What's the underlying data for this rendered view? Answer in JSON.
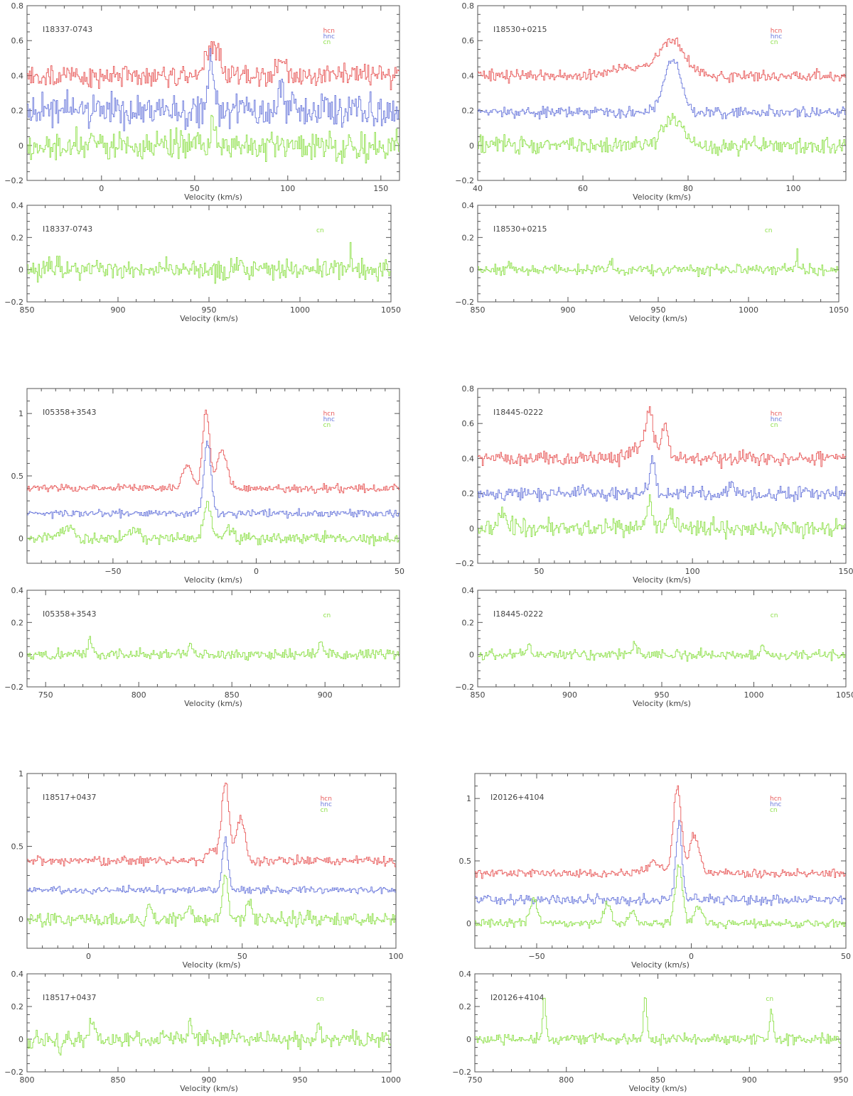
{
  "figure": {
    "colors": {
      "hcn": "#e85a5a",
      "hnc": "#6a78dc",
      "cn": "#8ee04a",
      "axis": "#555555",
      "text": "#444444"
    },
    "xlabel": "Velocity (km/s)"
  },
  "chart_data": [
    {
      "id": "I18337-0743-main",
      "type": "line",
      "source": "I18337-0743",
      "xlabel": "Velocity (km/s)",
      "ylabel": "",
      "xlim": [
        -40,
        160
      ],
      "ylim": [
        -0.2,
        0.8
      ],
      "xticks": [
        0,
        50,
        100,
        150
      ],
      "yticks": [
        -0.2,
        0,
        0.2,
        0.4,
        0.6,
        0.8
      ],
      "legend": [
        "hcn",
        "hnc",
        "cn"
      ],
      "series": [
        {
          "name": "hcn",
          "baseline": 0.4,
          "noise": 0.04,
          "features": [
            [
              57,
              0.1,
              3
            ],
            [
              62,
              0.12,
              2.5
            ],
            [
              97,
              0.1,
              2
            ]
          ]
        },
        {
          "name": "hnc",
          "baseline": 0.2,
          "noise": 0.06,
          "features": [
            [
              59,
              0.28,
              1.5
            ],
            [
              97,
              0.1,
              1.5
            ]
          ]
        },
        {
          "name": "cn",
          "baseline": 0.0,
          "noise": 0.05,
          "features": [
            [
              60,
              0.15,
              1.5
            ]
          ]
        }
      ]
    },
    {
      "id": "I18337-0743-cn",
      "type": "line",
      "source": "I18337-0743",
      "xlabel": "Velocity (km/s)",
      "ylabel": "",
      "xlim": [
        850,
        1050
      ],
      "ylim": [
        -0.2,
        0.4
      ],
      "xticks": [
        850,
        900,
        950,
        1000,
        1050
      ],
      "yticks": [
        -0.2,
        0,
        0.2,
        0.4
      ],
      "legend": [
        "cn"
      ],
      "series": [
        {
          "name": "cn",
          "baseline": 0.0,
          "noise": 0.04,
          "features": [
            [
              1028,
              0.12,
              0.6
            ]
          ]
        }
      ]
    },
    {
      "id": "I18530+0215-main",
      "type": "line",
      "source": "I18530+0215",
      "xlabel": "Velocity (km/s)",
      "ylabel": "",
      "xlim": [
        40,
        110
      ],
      "ylim": [
        -0.2,
        0.8
      ],
      "xticks": [
        40,
        60,
        80,
        100
      ],
      "yticks": [
        -0.2,
        0,
        0.2,
        0.4,
        0.6,
        0.8
      ],
      "legend": [
        "hcn",
        "hnc",
        "cn"
      ],
      "series": [
        {
          "name": "hcn",
          "baseline": 0.4,
          "noise": 0.02,
          "features": [
            [
              77,
              0.2,
              2.2
            ],
            [
              70,
              0.04,
              4
            ]
          ]
        },
        {
          "name": "hnc",
          "baseline": 0.19,
          "noise": 0.02,
          "features": [
            [
              77,
              0.3,
              1.6
            ]
          ]
        },
        {
          "name": "cn",
          "baseline": 0.0,
          "noise": 0.03,
          "features": [
            [
              77,
              0.15,
              1.8
            ]
          ]
        }
      ]
    },
    {
      "id": "I18530+0215-cn",
      "type": "line",
      "source": "I18530+0215",
      "xlabel": "Velocity (km/s)",
      "ylabel": "",
      "xlim": [
        850,
        1050
      ],
      "ylim": [
        -0.2,
        0.4
      ],
      "xticks": [
        850,
        900,
        950,
        1000,
        1050
      ],
      "yticks": [
        -0.2,
        0,
        0.2,
        0.4
      ],
      "legend": [
        "cn"
      ],
      "series": [
        {
          "name": "cn",
          "baseline": 0.0,
          "noise": 0.02,
          "features": [
            [
              868,
              0.05,
              1
            ],
            [
              924,
              0.05,
              1
            ],
            [
              1027,
              0.12,
              0.5
            ]
          ]
        }
      ]
    },
    {
      "id": "I05358+3543-main",
      "type": "line",
      "source": "I05358+3543",
      "xlabel": "Velocity (km/s)",
      "ylabel": "",
      "xlim": [
        -80,
        50
      ],
      "ylim": [
        -0.2,
        1.2
      ],
      "xticks": [
        -50,
        0,
        50
      ],
      "yticks": [
        0,
        0.5,
        1
      ],
      "legend": [
        "hcn",
        "hnc",
        "cn"
      ],
      "series": [
        {
          "name": "hcn",
          "baseline": 0.4,
          "noise": 0.02,
          "features": [
            [
              -17.5,
              0.62,
              1.2
            ],
            [
              -12,
              0.3,
              1.8
            ],
            [
              -24,
              0.2,
              1.5
            ]
          ]
        },
        {
          "name": "hnc",
          "baseline": 0.2,
          "noise": 0.02,
          "features": [
            [
              -17,
              0.58,
              1.2
            ]
          ]
        },
        {
          "name": "cn",
          "baseline": 0.0,
          "noise": 0.03,
          "features": [
            [
              -17,
              0.3,
              1.2
            ],
            [
              -66,
              0.08,
              2
            ],
            [
              -42,
              0.06,
              2
            ],
            [
              -10,
              0.08,
              1.5
            ]
          ]
        }
      ]
    },
    {
      "id": "I05358+3543-cn",
      "type": "line",
      "source": "I05358+3543",
      "xlabel": "Velocity (km/s)",
      "ylabel": "",
      "xlim": [
        740,
        940
      ],
      "ylim": [
        -0.2,
        0.4
      ],
      "xticks": [
        750,
        800,
        850,
        900
      ],
      "yticks": [
        -0.2,
        0,
        0.2,
        0.4
      ],
      "legend": [
        "cn"
      ],
      "series": [
        {
          "name": "cn",
          "baseline": 0.0,
          "noise": 0.02,
          "features": [
            [
              774,
              0.09,
              1.2
            ],
            [
              828,
              0.07,
              1.2
            ],
            [
              898,
              0.11,
              1
            ]
          ]
        }
      ]
    },
    {
      "id": "I18445-0222-main",
      "type": "line",
      "source": "I18445-0222",
      "xlabel": "Velocity (km/s)",
      "ylabel": "",
      "xlim": [
        30,
        150
      ],
      "ylim": [
        -0.2,
        0.8
      ],
      "xticks": [
        50,
        100,
        150
      ],
      "yticks": [
        -0.2,
        0,
        0.2,
        0.4,
        0.6,
        0.8
      ],
      "legend": [
        "hcn",
        "hnc",
        "cn"
      ],
      "series": [
        {
          "name": "hcn",
          "baseline": 0.4,
          "noise": 0.025,
          "features": [
            [
              86,
              0.27,
              1.3
            ],
            [
              91,
              0.17,
              1.3
            ],
            [
              81,
              0.06,
              2
            ]
          ]
        },
        {
          "name": "hnc",
          "baseline": 0.2,
          "noise": 0.025,
          "features": [
            [
              87,
              0.2,
              0.9
            ],
            [
              113,
              0.06,
              1
            ]
          ]
        },
        {
          "name": "cn",
          "baseline": 0.0,
          "noise": 0.03,
          "features": [
            [
              86,
              0.15,
              1
            ],
            [
              93,
              0.09,
              1
            ],
            [
              38,
              0.07,
              1.5
            ]
          ]
        }
      ]
    },
    {
      "id": "I18445-0222-cn",
      "type": "line",
      "source": "I18445-0222",
      "xlabel": "Velocity (km/s)",
      "ylabel": "",
      "xlim": [
        850,
        1050
      ],
      "ylim": [
        -0.2,
        0.4
      ],
      "xticks": [
        850,
        900,
        950,
        1000,
        1050
      ],
      "yticks": [
        -0.2,
        0,
        0.2,
        0.4
      ],
      "legend": [
        "cn"
      ],
      "series": [
        {
          "name": "cn",
          "baseline": 0.0,
          "noise": 0.02,
          "features": [
            [
              878,
              0.08,
              0.8
            ],
            [
              935,
              0.06,
              1
            ],
            [
              1005,
              0.05,
              1
            ]
          ]
        }
      ]
    },
    {
      "id": "I18517+0437-main",
      "type": "line",
      "source": "I18517+0437",
      "xlabel": "Velocity (km/s)",
      "ylabel": "",
      "xlim": [
        -20,
        100
      ],
      "ylim": [
        -0.2,
        1.0
      ],
      "xticks": [
        0,
        50,
        100
      ],
      "yticks": [
        0,
        0.5,
        1
      ],
      "legend": [
        "hcn",
        "hnc",
        "cn"
      ],
      "series": [
        {
          "name": "hcn",
          "baseline": 0.4,
          "noise": 0.02,
          "features": [
            [
              44.5,
              0.55,
              1.2
            ],
            [
              49.5,
              0.3,
              1.4
            ],
            [
              40,
              0.08,
              1.5
            ]
          ]
        },
        {
          "name": "hnc",
          "baseline": 0.2,
          "noise": 0.015,
          "features": [
            [
              44.5,
              0.35,
              0.9
            ]
          ]
        },
        {
          "name": "cn",
          "baseline": 0.0,
          "noise": 0.03,
          "features": [
            [
              44.5,
              0.3,
              0.9
            ],
            [
              20,
              0.1,
              0.8
            ],
            [
              33,
              0.1,
              0.8
            ],
            [
              52,
              0.12,
              0.8
            ]
          ]
        }
      ]
    },
    {
      "id": "I18517+0437-cn",
      "type": "line",
      "source": "I18517+0437",
      "xlabel": "Velocity (km/s)",
      "ylabel": "",
      "xlim": [
        800,
        1000
      ],
      "ylim": [
        -0.2,
        0.4
      ],
      "xticks": [
        800,
        850,
        900,
        950,
        1000
      ],
      "yticks": [
        -0.2,
        0,
        0.2,
        0.4
      ],
      "legend": [
        "cn"
      ],
      "series": [
        {
          "name": "cn",
          "baseline": 0.0,
          "noise": 0.03,
          "features": [
            [
              836,
              0.12,
              1.5
            ],
            [
              890,
              0.12,
              1
            ],
            [
              960,
              0.1,
              1
            ],
            [
              818,
              -0.14,
              0.5
            ]
          ]
        }
      ]
    },
    {
      "id": "I20126+4104-main",
      "type": "line",
      "source": "I20126+4104",
      "xlabel": "Velocity (km/s)",
      "ylabel": "",
      "xlim": [
        -70,
        50
      ],
      "ylim": [
        -0.2,
        1.2
      ],
      "xticks": [
        -50,
        0,
        50
      ],
      "yticks": [
        0,
        0.5,
        1
      ],
      "legend": [
        "hcn",
        "hnc",
        "cn"
      ],
      "series": [
        {
          "name": "hcn",
          "baseline": 0.4,
          "noise": 0.02,
          "features": [
            [
              -4.5,
              0.7,
              1.3
            ],
            [
              1,
              0.3,
              1.5
            ],
            [
              -12,
              0.1,
              2
            ]
          ]
        },
        {
          "name": "hnc",
          "baseline": 0.19,
          "noise": 0.025,
          "features": [
            [
              -4,
              0.6,
              1
            ]
          ]
        },
        {
          "name": "cn",
          "baseline": 0.0,
          "noise": 0.02,
          "features": [
            [
              -4,
              0.45,
              1.2
            ],
            [
              -51,
              0.18,
              1.2
            ],
            [
              -27,
              0.15,
              1.2
            ],
            [
              -19,
              0.1,
              1
            ],
            [
              2.5,
              0.15,
              1.2
            ]
          ]
        }
      ]
    },
    {
      "id": "I20126+4104-cn",
      "type": "line",
      "source": "I20126+4104",
      "xlabel": "Velocity (km/s)",
      "ylabel": "",
      "xlim": [
        750,
        950
      ],
      "ylim": [
        -0.2,
        0.4
      ],
      "xticks": [
        750,
        800,
        850,
        900,
        950
      ],
      "yticks": [
        -0.2,
        0,
        0.2,
        0.4
      ],
      "legend": [
        "cn"
      ],
      "series": [
        {
          "name": "cn",
          "baseline": 0.0,
          "noise": 0.02,
          "features": [
            [
              788,
              0.27,
              0.8
            ],
            [
              843,
              0.26,
              0.8
            ],
            [
              912,
              0.2,
              0.8
            ]
          ]
        }
      ]
    }
  ]
}
